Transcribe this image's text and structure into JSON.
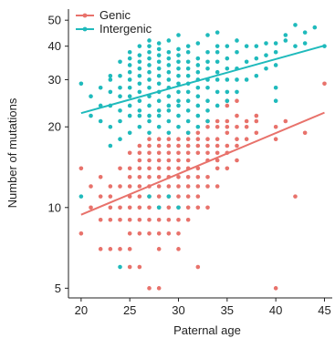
{
  "chart_data": {
    "type": "scatter",
    "xlabel": "Paternal age",
    "ylabel": "Number of mutations",
    "xlim": [
      18.7,
      45.8
    ],
    "ylim": [
      4.6,
      55
    ],
    "y_scale": "log",
    "x_ticks": [
      20,
      25,
      30,
      35,
      40,
      45
    ],
    "y_ticks": [
      5,
      10,
      20,
      30,
      40,
      50
    ],
    "grid": false,
    "legend_position": "top-left",
    "series": [
      {
        "name": "Genic",
        "color": "#E8726B",
        "trend": {
          "x": [
            20,
            45
          ],
          "y": [
            9.4,
            22.6
          ]
        },
        "points": [
          [
            20,
            8
          ],
          [
            20,
            14
          ],
          [
            21,
            10
          ],
          [
            21,
            12
          ],
          [
            22,
            7
          ],
          [
            22,
            9
          ],
          [
            22,
            11
          ],
          [
            22,
            13
          ],
          [
            23,
            7
          ],
          [
            23,
            9
          ],
          [
            23,
            10
          ],
          [
            23,
            11
          ],
          [
            23,
            12
          ],
          [
            24,
            7
          ],
          [
            24,
            9
          ],
          [
            24,
            10
          ],
          [
            24,
            12
          ],
          [
            24,
            14
          ],
          [
            25,
            6
          ],
          [
            25,
            7
          ],
          [
            25,
            8
          ],
          [
            25,
            9
          ],
          [
            25,
            10
          ],
          [
            25,
            11
          ],
          [
            25,
            12
          ],
          [
            25,
            13
          ],
          [
            25,
            14
          ],
          [
            25,
            16
          ],
          [
            26,
            6
          ],
          [
            26,
            8
          ],
          [
            26,
            9
          ],
          [
            26,
            10
          ],
          [
            26,
            11
          ],
          [
            26,
            12
          ],
          [
            26,
            13
          ],
          [
            26,
            14
          ],
          [
            26,
            15
          ],
          [
            26,
            16
          ],
          [
            26,
            17
          ],
          [
            27,
            5
          ],
          [
            27,
            8
          ],
          [
            27,
            9
          ],
          [
            27,
            10
          ],
          [
            27,
            11
          ],
          [
            27,
            12
          ],
          [
            27,
            13
          ],
          [
            27,
            14
          ],
          [
            27,
            15
          ],
          [
            27,
            16
          ],
          [
            27,
            17
          ],
          [
            27,
            18
          ],
          [
            28,
            5
          ],
          [
            28,
            7
          ],
          [
            28,
            8
          ],
          [
            28,
            9
          ],
          [
            28,
            10
          ],
          [
            28,
            11
          ],
          [
            28,
            12
          ],
          [
            28,
            13
          ],
          [
            28,
            14
          ],
          [
            28,
            15
          ],
          [
            28,
            16
          ],
          [
            28,
            17
          ],
          [
            28,
            18
          ],
          [
            29,
            8
          ],
          [
            29,
            9
          ],
          [
            29,
            10
          ],
          [
            29,
            11
          ],
          [
            29,
            12
          ],
          [
            29,
            13
          ],
          [
            29,
            14
          ],
          [
            29,
            15
          ],
          [
            29,
            16
          ],
          [
            29,
            17
          ],
          [
            29,
            18
          ],
          [
            30,
            7
          ],
          [
            30,
            8
          ],
          [
            30,
            9
          ],
          [
            30,
            10
          ],
          [
            30,
            11
          ],
          [
            30,
            12
          ],
          [
            30,
            13
          ],
          [
            30,
            14
          ],
          [
            30,
            15
          ],
          [
            30,
            16
          ],
          [
            30,
            17
          ],
          [
            30,
            18
          ],
          [
            31,
            9
          ],
          [
            31,
            10
          ],
          [
            31,
            11
          ],
          [
            31,
            12
          ],
          [
            31,
            13
          ],
          [
            31,
            14
          ],
          [
            31,
            15
          ],
          [
            31,
            16
          ],
          [
            31,
            17
          ],
          [
            31,
            18
          ],
          [
            31,
            19
          ],
          [
            32,
            6
          ],
          [
            32,
            10
          ],
          [
            32,
            11
          ],
          [
            32,
            12
          ],
          [
            32,
            13
          ],
          [
            32,
            14
          ],
          [
            32,
            16
          ],
          [
            32,
            17
          ],
          [
            32,
            18
          ],
          [
            32,
            19
          ],
          [
            33,
            10
          ],
          [
            33,
            12
          ],
          [
            33,
            13
          ],
          [
            33,
            15
          ],
          [
            33,
            16
          ],
          [
            33,
            17
          ],
          [
            33,
            18
          ],
          [
            33,
            20
          ],
          [
            33,
            21
          ],
          [
            34,
            12
          ],
          [
            34,
            14
          ],
          [
            34,
            15
          ],
          [
            34,
            16
          ],
          [
            34,
            17
          ],
          [
            34,
            18
          ],
          [
            34,
            20
          ],
          [
            34,
            21
          ],
          [
            35,
            14
          ],
          [
            35,
            16
          ],
          [
            35,
            17
          ],
          [
            35,
            19
          ],
          [
            35,
            20
          ],
          [
            35,
            21
          ],
          [
            35,
            24
          ],
          [
            35,
            25
          ],
          [
            36,
            15
          ],
          [
            36,
            17
          ],
          [
            36,
            18
          ],
          [
            36,
            20
          ],
          [
            36,
            22
          ],
          [
            36,
            25
          ],
          [
            37,
            18
          ],
          [
            37,
            20
          ],
          [
            37,
            21
          ],
          [
            38,
            19
          ],
          [
            38,
            21
          ],
          [
            38,
            22
          ],
          [
            40,
            5
          ],
          [
            40,
            18
          ],
          [
            40,
            20
          ],
          [
            41,
            21
          ],
          [
            42,
            11
          ],
          [
            43,
            19
          ],
          [
            45,
            29
          ]
        ]
      },
      {
        "name": "Intergenic",
        "color": "#1FBABC",
        "trend": {
          "x": [
            20,
            45
          ],
          "y": [
            22.5,
            40.2
          ]
        },
        "points": [
          [
            20,
            11
          ],
          [
            20,
            29
          ],
          [
            21,
            22
          ],
          [
            21,
            26
          ],
          [
            22,
            21
          ],
          [
            22,
            24
          ],
          [
            22,
            28
          ],
          [
            23,
            17
          ],
          [
            23,
            20
          ],
          [
            23,
            24
          ],
          [
            23,
            27
          ],
          [
            23,
            30
          ],
          [
            23,
            31
          ],
          [
            24,
            6
          ],
          [
            24,
            18
          ],
          [
            24,
            21
          ],
          [
            24,
            23
          ],
          [
            24,
            26
          ],
          [
            24,
            28
          ],
          [
            24,
            31
          ],
          [
            24,
            35
          ],
          [
            25,
            19
          ],
          [
            25,
            22
          ],
          [
            25,
            24
          ],
          [
            25,
            26
          ],
          [
            25,
            28
          ],
          [
            25,
            30
          ],
          [
            25,
            32
          ],
          [
            25,
            34
          ],
          [
            25,
            36
          ],
          [
            25,
            38
          ],
          [
            26,
            20
          ],
          [
            26,
            22
          ],
          [
            26,
            23
          ],
          [
            26,
            25
          ],
          [
            26,
            27
          ],
          [
            26,
            29
          ],
          [
            26,
            31
          ],
          [
            26,
            33
          ],
          [
            26,
            35
          ],
          [
            26,
            37
          ],
          [
            26,
            40
          ],
          [
            27,
            11
          ],
          [
            27,
            19
          ],
          [
            27,
            21
          ],
          [
            27,
            22
          ],
          [
            27,
            24
          ],
          [
            27,
            26
          ],
          [
            27,
            28
          ],
          [
            27,
            30
          ],
          [
            27,
            32
          ],
          [
            27,
            34
          ],
          [
            27,
            36
          ],
          [
            27,
            38
          ],
          [
            27,
            40
          ],
          [
            27,
            42
          ],
          [
            28,
            10
          ],
          [
            28,
            20
          ],
          [
            28,
            22
          ],
          [
            28,
            23
          ],
          [
            28,
            25
          ],
          [
            28,
            27
          ],
          [
            28,
            29
          ],
          [
            28,
            31
          ],
          [
            28,
            33
          ],
          [
            28,
            35
          ],
          [
            28,
            37
          ],
          [
            28,
            39
          ],
          [
            28,
            41
          ],
          [
            29,
            11
          ],
          [
            29,
            19
          ],
          [
            29,
            21
          ],
          [
            29,
            23
          ],
          [
            29,
            24
          ],
          [
            29,
            26
          ],
          [
            29,
            28
          ],
          [
            29,
            30
          ],
          [
            29,
            32
          ],
          [
            29,
            34
          ],
          [
            29,
            36
          ],
          [
            29,
            38
          ],
          [
            29,
            42
          ],
          [
            30,
            10
          ],
          [
            30,
            20
          ],
          [
            30,
            22
          ],
          [
            30,
            24
          ],
          [
            30,
            25
          ],
          [
            30,
            27
          ],
          [
            30,
            29
          ],
          [
            30,
            31
          ],
          [
            30,
            33
          ],
          [
            30,
            35
          ],
          [
            30,
            37
          ],
          [
            30,
            39
          ],
          [
            30,
            44
          ],
          [
            31,
            19
          ],
          [
            31,
            21
          ],
          [
            31,
            23
          ],
          [
            31,
            25
          ],
          [
            31,
            27
          ],
          [
            31,
            29
          ],
          [
            31,
            31
          ],
          [
            31,
            33
          ],
          [
            31,
            35
          ],
          [
            31,
            38
          ],
          [
            31,
            40
          ],
          [
            32,
            20
          ],
          [
            32,
            22
          ],
          [
            32,
            24
          ],
          [
            32,
            26
          ],
          [
            32,
            28
          ],
          [
            32,
            30
          ],
          [
            32,
            32
          ],
          [
            32,
            34
          ],
          [
            32,
            36
          ],
          [
            32,
            41
          ],
          [
            33,
            21
          ],
          [
            33,
            23
          ],
          [
            33,
            25
          ],
          [
            33,
            28
          ],
          [
            33,
            30
          ],
          [
            33,
            33
          ],
          [
            33,
            35
          ],
          [
            33,
            38
          ],
          [
            33,
            44
          ],
          [
            34,
            24
          ],
          [
            34,
            27
          ],
          [
            34,
            30
          ],
          [
            34,
            32
          ],
          [
            34,
            35
          ],
          [
            34,
            38
          ],
          [
            34,
            40
          ],
          [
            34,
            45
          ],
          [
            35,
            25
          ],
          [
            35,
            27
          ],
          [
            35,
            30
          ],
          [
            35,
            33
          ],
          [
            35,
            36
          ],
          [
            35,
            40
          ],
          [
            36,
            27
          ],
          [
            36,
            30
          ],
          [
            36,
            33
          ],
          [
            36,
            38
          ],
          [
            36,
            42
          ],
          [
            37,
            30
          ],
          [
            37,
            35
          ],
          [
            37,
            40
          ],
          [
            38,
            31
          ],
          [
            38,
            36
          ],
          [
            38,
            40
          ],
          [
            39,
            33
          ],
          [
            39,
            37
          ],
          [
            39,
            41
          ],
          [
            40,
            25
          ],
          [
            40,
            28
          ],
          [
            40,
            34
          ],
          [
            40,
            38
          ],
          [
            40,
            41
          ],
          [
            41,
            42
          ],
          [
            41,
            44
          ],
          [
            42,
            40
          ],
          [
            42,
            48
          ],
          [
            43,
            41
          ],
          [
            43,
            45
          ],
          [
            44,
            47
          ],
          [
            45,
            40
          ]
        ]
      }
    ]
  }
}
